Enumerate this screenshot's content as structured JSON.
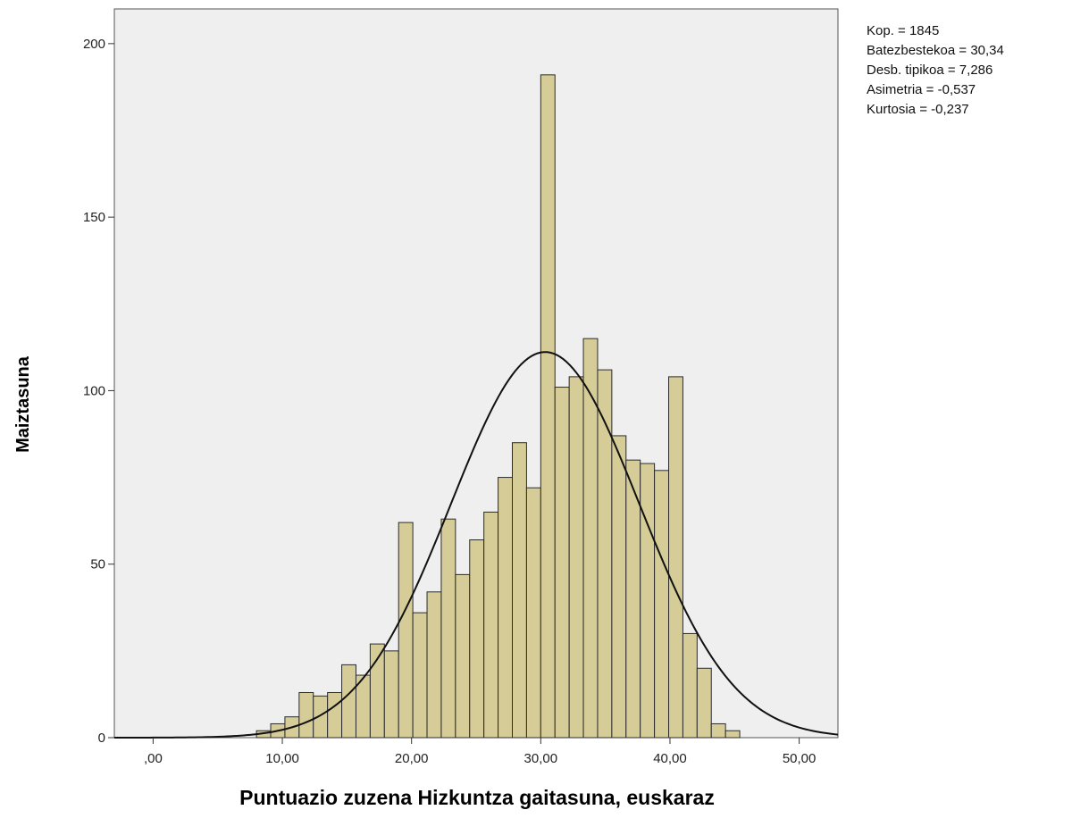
{
  "chart_data": {
    "type": "bar",
    "subtype": "histogram",
    "xlabel": "Puntuazio zuzena Hizkuntza gaitasuna, euskaraz",
    "ylabel": "Maiztasuna",
    "xlim": [
      -3,
      53
    ],
    "ylim": [
      0,
      210
    ],
    "bin_width": 1.1,
    "x_ticks": [
      {
        "value": 0,
        "label": ",00"
      },
      {
        "value": 10,
        "label": "10,00"
      },
      {
        "value": 20,
        "label": "20,00"
      },
      {
        "value": 30,
        "label": "30,00"
      },
      {
        "value": 40,
        "label": "40,00"
      },
      {
        "value": 50,
        "label": "50,00"
      }
    ],
    "y_ticks": [
      {
        "value": 0,
        "label": "0"
      },
      {
        "value": 50,
        "label": "50"
      },
      {
        "value": 100,
        "label": "100"
      },
      {
        "value": 150,
        "label": "150"
      },
      {
        "value": 200,
        "label": "200"
      }
    ],
    "bins": [
      {
        "start": 8.0,
        "value": 2
      },
      {
        "start": 9.1,
        "value": 4
      },
      {
        "start": 10.2,
        "value": 6
      },
      {
        "start": 11.3,
        "value": 13
      },
      {
        "start": 12.4,
        "value": 12
      },
      {
        "start": 13.5,
        "value": 13
      },
      {
        "start": 14.6,
        "value": 21
      },
      {
        "start": 15.7,
        "value": 18
      },
      {
        "start": 16.8,
        "value": 27
      },
      {
        "start": 17.9,
        "value": 25
      },
      {
        "start": 19.0,
        "value": 62
      },
      {
        "start": 20.1,
        "value": 36
      },
      {
        "start": 21.2,
        "value": 42
      },
      {
        "start": 22.3,
        "value": 63
      },
      {
        "start": 23.4,
        "value": 47
      },
      {
        "start": 24.5,
        "value": 57
      },
      {
        "start": 25.6,
        "value": 65
      },
      {
        "start": 26.7,
        "value": 75
      },
      {
        "start": 27.8,
        "value": 85
      },
      {
        "start": 28.9,
        "value": 72
      },
      {
        "start": 30.0,
        "value": 191
      },
      {
        "start": 31.1,
        "value": 101
      },
      {
        "start": 32.2,
        "value": 104
      },
      {
        "start": 33.3,
        "value": 115
      },
      {
        "start": 34.4,
        "value": 106
      },
      {
        "start": 35.5,
        "value": 87
      },
      {
        "start": 36.6,
        "value": 80
      },
      {
        "start": 37.7,
        "value": 79
      },
      {
        "start": 38.8,
        "value": 77
      },
      {
        "start": 39.9,
        "value": 104
      },
      {
        "start": 41.0,
        "value": 30
      },
      {
        "start": 42.1,
        "value": 20
      },
      {
        "start": 43.2,
        "value": 4
      },
      {
        "start": 44.3,
        "value": 2
      }
    ],
    "normal_curve": {
      "mean": 30.34,
      "sd": 7.286,
      "n": 1845
    },
    "stats": [
      "Kop. = 1845",
      "Batezbestekoa = 30,34",
      "Desb. tipikoa = 7,286",
      "Asimetria = -0,537",
      "Kurtosia = -0,237"
    ],
    "colors": {
      "bar_fill": "#d5cc98",
      "bar_stroke": "#2b2b2b",
      "plot_background": "#efefef",
      "curve": "#111111"
    },
    "grid": false
  }
}
